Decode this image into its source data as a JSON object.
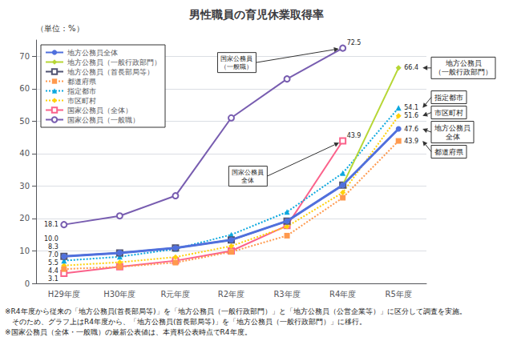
{
  "chart_data": {
    "type": "line",
    "title": "男性職員の育児休業取得率",
    "y_label": "（単位：%）",
    "categories": [
      "H29年度",
      "H30年度",
      "R元年度",
      "R2年度",
      "R3年度",
      "R4年度",
      "R5年度"
    ],
    "ylim": [
      0,
      75
    ],
    "yticks": [
      0,
      10,
      20,
      30,
      40,
      50,
      60,
      70
    ],
    "grid": true,
    "legend": "upper left",
    "series": [
      {
        "name": "地方公務員全体",
        "values": [
          8.3,
          9.4,
          10.9,
          13.4,
          19.2,
          30.3,
          47.6
        ],
        "marker": "circle",
        "line_style": "solid"
      },
      {
        "name": "地方公務員（一般行政部門）",
        "values": [
          null,
          null,
          null,
          null,
          null,
          30.3,
          66.4
        ],
        "marker": "diamond",
        "line_style": "solid"
      },
      {
        "name": "地方公務員（首長部局等）",
        "values": [
          8.3,
          9.4,
          10.9,
          13.4,
          19.2,
          30.3,
          null
        ],
        "marker": "open square",
        "line_style": "solid"
      },
      {
        "name": "都道府県",
        "values": [
          4.4,
          5.1,
          6.4,
          9.7,
          14.7,
          26.4,
          43.9
        ],
        "marker": "square",
        "line_style": "dotted"
      },
      {
        "name": "指定都市",
        "values": [
          7.0,
          8.2,
          10.6,
          15.0,
          22.0,
          34.0,
          54.1
        ],
        "marker": "triangle",
        "line_style": "dotted"
      },
      {
        "name": "市区町村",
        "values": [
          5.5,
          6.5,
          8.1,
          11.5,
          17.5,
          28.0,
          51.6
        ],
        "marker": "diamond",
        "line_style": "dotted"
      },
      {
        "name": "国家公務員（全体）",
        "values": [
          3.1,
          5.1,
          7.0,
          10.0,
          17.8,
          43.9,
          null
        ],
        "marker": "open square",
        "line_style": "solid"
      },
      {
        "name": "国家公務員（一般職）",
        "values": [
          18.1,
          20.8,
          27.0,
          51.0,
          63.0,
          72.5,
          null
        ],
        "marker": "open circle",
        "line_style": "solid"
      }
    ],
    "annotations": [
      {
        "text": "18.1",
        "x": "H29年度",
        "y": 18.1
      },
      {
        "text": "10.0",
        "x": "H29年度",
        "y": 10.0
      },
      {
        "text": "8.3",
        "x": "H29年度",
        "y": 8.3
      },
      {
        "text": "7.0",
        "x": "H29年度",
        "y": 7.0
      },
      {
        "text": "5.5",
        "x": "H29年度",
        "y": 5.5
      },
      {
        "text": "4.4",
        "x": "H29年度",
        "y": 4.4
      },
      {
        "text": "3.1",
        "x": "H29年度",
        "y": 3.1
      },
      {
        "text": "72.5",
        "x": "R4年度",
        "y": 72.5
      },
      {
        "text": "43.9",
        "x": "R4年度",
        "y": 43.9
      },
      {
        "text": "66.4",
        "x": "R5年度",
        "y": 66.4
      },
      {
        "text": "54.1",
        "x": "R5年度",
        "y": 54.1
      },
      {
        "text": "51.6",
        "x": "R5年度",
        "y": 51.6
      },
      {
        "text": "47.6",
        "x": "R5年度",
        "y": 47.6
      },
      {
        "text": "43.9",
        "x": "R5年度",
        "y": 43.9
      }
    ],
    "callouts": [
      {
        "text": "国家公務員\n全体",
        "x": "R4年度",
        "y": 43.9
      },
      {
        "text": "国家公務員\n（一般職）",
        "x": "R4年度",
        "y": 72.5
      },
      {
        "text": "地方公務員\n（一般行政部門）",
        "x": "R5年度",
        "y": 66.4
      },
      {
        "text": "指定都市",
        "x": "R5年度",
        "y": 54.1
      },
      {
        "text": "市区町村",
        "x": "R5年度",
        "y": 51.6
      },
      {
        "text": "地方公務員\n全体",
        "x": "R5年度",
        "y": 47.6
      },
      {
        "text": "都道府県",
        "x": "R5年度",
        "y": 43.9
      }
    ],
    "footnotes": [
      "※R4年度から従来の「地方公務員(首長部局等)」を「地方公務員（一般行政部門）」と「地方公務員（公営企業等）」に区分して調査を実施。",
      "　そのため、グラフ上はR4年度から、「地方公務員(首長部局等)」を「地方公務員（一般行政部門）」に移行。",
      "※国家公務員（全体・一般職）の最新公表値は、本資料公表時点でR4年度。"
    ]
  }
}
